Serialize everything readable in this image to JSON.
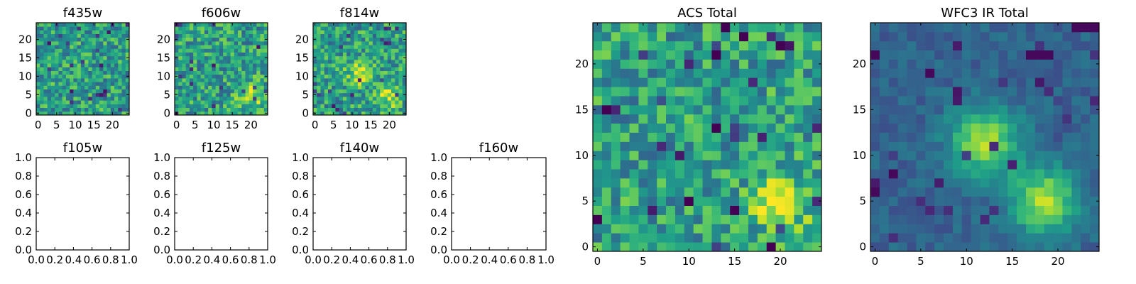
{
  "chart_data": [
    {
      "type": "heatmap",
      "title": "f435w",
      "xlim": [
        -0.5,
        24.5
      ],
      "ylim": [
        -0.5,
        24.5
      ],
      "x_ticks": [
        0,
        5,
        10,
        15,
        20
      ],
      "y_ticks": [
        0,
        5,
        10,
        15,
        20
      ],
      "x_tick_labels": [
        "0",
        "5",
        "10",
        "15",
        "20"
      ],
      "y_tick_labels": [
        "0",
        "5",
        "10",
        "15",
        "20"
      ],
      "colormap": "viridis",
      "grid_size": [
        25,
        25
      ],
      "value_range": [
        0,
        1
      ],
      "description": "noisy pixel field, mostly yellow-green"
    },
    {
      "type": "heatmap",
      "title": "f606w",
      "xlim": [
        -0.5,
        24.5
      ],
      "ylim": [
        -0.5,
        24.5
      ],
      "x_ticks": [
        0,
        5,
        10,
        15,
        20
      ],
      "y_ticks": [
        0,
        5,
        10,
        15,
        20
      ],
      "x_tick_labels": [
        "0",
        "5",
        "10",
        "15",
        "20"
      ],
      "y_tick_labels": [
        "0",
        "5",
        "10",
        "15",
        "20"
      ],
      "colormap": "viridis",
      "grid_size": [
        25,
        25
      ],
      "value_range": [
        0,
        1
      ],
      "bright_peaks": [
        [
          20,
          5
        ]
      ]
    },
    {
      "type": "heatmap",
      "title": "f814w",
      "xlim": [
        -0.5,
        24.5
      ],
      "ylim": [
        -0.5,
        24.5
      ],
      "x_ticks": [
        0,
        5,
        10,
        15,
        20
      ],
      "y_ticks": [
        0,
        5,
        10,
        15,
        20
      ],
      "x_tick_labels": [
        "0",
        "5",
        "10",
        "15",
        "20"
      ],
      "y_tick_labels": [
        "0",
        "5",
        "10",
        "15",
        "20"
      ],
      "colormap": "viridis",
      "grid_size": [
        25,
        25
      ],
      "value_range": [
        0,
        1
      ],
      "bright_peaks": [
        [
          12,
          11
        ],
        [
          20,
          5
        ]
      ]
    },
    {
      "type": "heatmap",
      "title": "f105w",
      "empty": true,
      "xlim": [
        0,
        1
      ],
      "ylim": [
        0,
        1
      ],
      "x_ticks": [
        0,
        0.2,
        0.4,
        0.6,
        0.8,
        1.0
      ],
      "y_ticks": [
        0,
        0.2,
        0.4,
        0.6,
        0.8,
        1.0
      ],
      "x_tick_labels": [
        "0.0",
        "0.2",
        "0.4",
        "0.6",
        "0.8",
        "1.0"
      ],
      "y_tick_labels": [
        "0.0",
        "0.2",
        "0.4",
        "0.6",
        "0.8",
        "1.0"
      ]
    },
    {
      "type": "heatmap",
      "title": "f125w",
      "empty": true,
      "xlim": [
        0,
        1
      ],
      "ylim": [
        0,
        1
      ],
      "x_ticks": [
        0,
        0.2,
        0.4,
        0.6,
        0.8,
        1.0
      ],
      "y_ticks": [
        0,
        0.2,
        0.4,
        0.6,
        0.8,
        1.0
      ],
      "x_tick_labels": [
        "0.0",
        "0.2",
        "0.4",
        "0.6",
        "0.8",
        "1.0"
      ],
      "y_tick_labels": [
        "0.0",
        "0.2",
        "0.4",
        "0.6",
        "0.8",
        "1.0"
      ]
    },
    {
      "type": "heatmap",
      "title": "f140w",
      "empty": true,
      "xlim": [
        0,
        1
      ],
      "ylim": [
        0,
        1
      ],
      "x_ticks": [
        0,
        0.2,
        0.4,
        0.6,
        0.8,
        1.0
      ],
      "y_ticks": [
        0,
        0.2,
        0.4,
        0.6,
        0.8,
        1.0
      ],
      "x_tick_labels": [
        "0.0",
        "0.2",
        "0.4",
        "0.6",
        "0.8",
        "1.0"
      ],
      "y_tick_labels": [
        "0.0",
        "0.2",
        "0.4",
        "0.6",
        "0.8",
        "1.0"
      ]
    },
    {
      "type": "heatmap",
      "title": "f160w",
      "empty": true,
      "xlim": [
        0,
        1
      ],
      "ylim": [
        0,
        1
      ],
      "x_ticks": [
        0,
        0.2,
        0.4,
        0.6,
        0.8,
        1.0
      ],
      "y_ticks": [
        0,
        0.2,
        0.4,
        0.6,
        0.8,
        1.0
      ],
      "x_tick_labels": [
        "0.0",
        "0.2",
        "0.4",
        "0.6",
        "0.8",
        "1.0"
      ],
      "y_tick_labels": [
        "0.0",
        "0.2",
        "0.4",
        "0.6",
        "0.8",
        "1.0"
      ]
    },
    {
      "type": "heatmap",
      "title": "ACS Total",
      "xlim": [
        -0.5,
        24.5
      ],
      "ylim": [
        -0.5,
        24.5
      ],
      "x_ticks": [
        0,
        5,
        10,
        15,
        20
      ],
      "y_ticks": [
        0,
        5,
        10,
        15,
        20
      ],
      "x_tick_labels": [
        "0",
        "5",
        "10",
        "15",
        "20"
      ],
      "y_tick_labels": [
        "0",
        "5",
        "10",
        "15",
        "20"
      ],
      "colormap": "viridis",
      "grid_size": [
        25,
        25
      ],
      "value_range": [
        0,
        1
      ],
      "bright_peaks": [
        [
          20,
          5
        ]
      ],
      "dark_pixels": [
        [
          1,
          15
        ],
        [
          14,
          24
        ],
        [
          16,
          23
        ],
        [
          20,
          22
        ],
        [
          13,
          21
        ],
        [
          10,
          5
        ],
        [
          15,
          4
        ],
        [
          19,
          0
        ],
        [
          0,
          3
        ],
        [
          13,
          13
        ]
      ]
    },
    {
      "type": "heatmap",
      "title": "WFC3 IR Total",
      "xlim": [
        -0.5,
        24.5
      ],
      "ylim": [
        -0.5,
        24.5
      ],
      "x_ticks": [
        0,
        5,
        10,
        15,
        20
      ],
      "y_ticks": [
        0,
        5,
        10,
        15,
        20
      ],
      "x_tick_labels": [
        "0",
        "5",
        "10",
        "15",
        "20"
      ],
      "y_tick_labels": [
        "0",
        "5",
        "10",
        "15",
        "20"
      ],
      "colormap": "viridis",
      "grid_size": [
        25,
        25
      ],
      "value_range": [
        0,
        1
      ],
      "bright_peaks": [
        [
          12,
          11
        ],
        [
          18,
          5
        ]
      ],
      "dark_pixels": [
        [
          22,
          24
        ],
        [
          23,
          24
        ],
        [
          24,
          24
        ],
        [
          17,
          21
        ],
        [
          18,
          21
        ],
        [
          19,
          21
        ],
        [
          6,
          19
        ],
        [
          2,
          8
        ],
        [
          0,
          6
        ],
        [
          0,
          21
        ]
      ]
    }
  ],
  "colors": {
    "viridis_stops": [
      "#440154",
      "#482878",
      "#3e4989",
      "#31688e",
      "#26828e",
      "#1f9e89",
      "#35b779",
      "#6ece58",
      "#b5de2b",
      "#fde725"
    ]
  }
}
